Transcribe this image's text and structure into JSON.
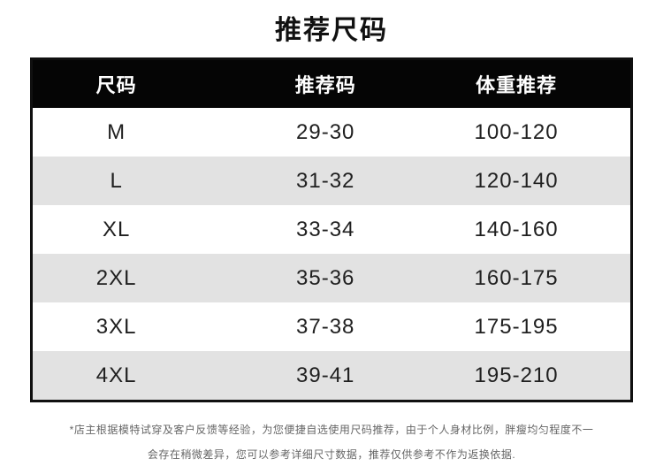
{
  "chart_data": {
    "type": "table",
    "title": "推荐尺码",
    "columns": [
      "尺码",
      "推荐码",
      "体重推荐"
    ],
    "rows": [
      [
        "M",
        "29-30",
        "100-120"
      ],
      [
        "L",
        "31-32",
        "120-140"
      ],
      [
        "XL",
        "33-34",
        "140-160"
      ],
      [
        "2XL",
        "35-36",
        "160-175"
      ],
      [
        "3XL",
        "37-38",
        "175-195"
      ],
      [
        "4XL",
        "39-41",
        "195-210"
      ]
    ],
    "layout": {
      "header_style": "black-bar-white-text",
      "zebra_striping": true,
      "striped_rows": [
        "L",
        "2XL",
        "4XL"
      ]
    }
  },
  "footnote": {
    "line1": "*店主根据模特试穿及客户反馈等经验，为您便捷自选使用尺码推荐，由于个人身材比例，胖瘦均匀程度不一",
    "line2": "会存在稍微差异，您可以参考详细尺寸数据，推荐仅供参考不作为返换依据."
  },
  "colors": {
    "page_bg": "#ffffff",
    "title_color": "#111111",
    "header_bg": "#050505",
    "header_text": "#ffffff",
    "row_bg": "#ffffff",
    "alt_row_bg": "#e2e2e2",
    "cell_text": "#1f1f1f",
    "border": "#101010",
    "footnote_text": "#666666"
  }
}
